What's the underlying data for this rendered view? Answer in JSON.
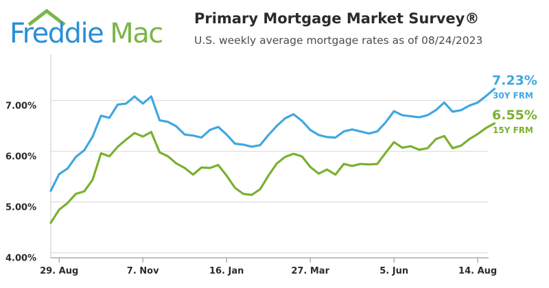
{
  "logo": {
    "word1": "Freddie",
    "word2": "Mac",
    "text": "FreddieMac"
  },
  "header": {
    "title": "Primary Mortgage Market Survey®",
    "subtitle": "U.S. weekly average mortgage rates as of 08/24/2023"
  },
  "colors": {
    "frm30": "#3fa7e0",
    "frm15": "#7ab02f",
    "logo_blue": "#2a8fd6",
    "logo_green": "#7ab648",
    "grid": "#d8d8d8"
  },
  "chart_data": {
    "type": "line",
    "title": "Primary Mortgage Market Survey®",
    "subtitle": "U.S. weekly average mortgage rates as of 08/24/2023",
    "xlabel": "",
    "ylabel": "",
    "x_ticks": [
      "29. Aug",
      "7. Nov",
      "16. Jan",
      "27. Mar",
      "5. Jun",
      "14. Aug"
    ],
    "x_tick_index": [
      1,
      11,
      21,
      31,
      41,
      51
    ],
    "y_ticks": [
      "4.00%",
      "5.00%",
      "6.00%",
      "7.00%"
    ],
    "y_tick_values": [
      4,
      5,
      6,
      7
    ],
    "ylim": [
      3.9,
      7.9
    ],
    "xlim": [
      0,
      52.3
    ],
    "grid": "horizontal",
    "series": [
      {
        "name": "30Y FRM",
        "end_label": "7.23%",
        "values": [
          5.22,
          5.55,
          5.66,
          5.89,
          6.02,
          6.29,
          6.7,
          6.66,
          6.92,
          6.94,
          7.08,
          6.94,
          7.08,
          6.61,
          6.58,
          6.49,
          6.33,
          6.31,
          6.27,
          6.42,
          6.48,
          6.33,
          6.15,
          6.13,
          6.09,
          6.12,
          6.32,
          6.5,
          6.65,
          6.73,
          6.6,
          6.42,
          6.32,
          6.28,
          6.27,
          6.39,
          6.43,
          6.39,
          6.35,
          6.39,
          6.57,
          6.79,
          6.71,
          6.69,
          6.67,
          6.71,
          6.81,
          6.96,
          6.78,
          6.81,
          6.9,
          6.96,
          7.09,
          7.23
        ]
      },
      {
        "name": "15Y FRM",
        "end_label": "6.55%",
        "values": [
          4.59,
          4.85,
          4.98,
          5.16,
          5.21,
          5.44,
          5.96,
          5.9,
          6.09,
          6.23,
          6.36,
          6.29,
          6.38,
          5.98,
          5.9,
          5.76,
          5.67,
          5.54,
          5.68,
          5.67,
          5.73,
          5.52,
          5.28,
          5.16,
          5.14,
          5.25,
          5.52,
          5.76,
          5.89,
          5.95,
          5.9,
          5.69,
          5.56,
          5.64,
          5.54,
          5.75,
          5.71,
          5.75,
          5.74,
          5.75,
          5.97,
          6.18,
          6.07,
          6.1,
          6.03,
          6.06,
          6.24,
          6.3,
          6.06,
          6.11,
          6.24,
          6.34,
          6.46,
          6.55
        ]
      }
    ]
  }
}
